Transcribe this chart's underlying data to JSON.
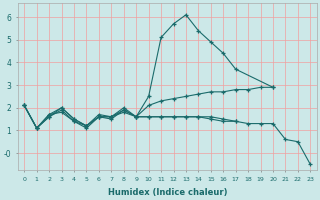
{
  "xlabel": "Humidex (Indice chaleur)",
  "background_color": "#cce8e8",
  "line_color": "#1a6b6b",
  "grid_color": "#f0a0a0",
  "xlim": [
    -0.5,
    23.5
  ],
  "ylim": [
    -0.75,
    6.6
  ],
  "xticks": [
    0,
    1,
    2,
    3,
    4,
    5,
    6,
    7,
    8,
    9,
    10,
    11,
    12,
    13,
    14,
    15,
    16,
    17,
    18,
    19,
    20,
    21,
    22,
    23
  ],
  "yticks": [
    0,
    1,
    2,
    3,
    4,
    5,
    6
  ],
  "ytick_labels": [
    "-0",
    "1",
    "2",
    "3",
    "4",
    "5",
    "6"
  ],
  "lines": [
    {
      "x": [
        0,
        1,
        2,
        3,
        4,
        5,
        6,
        7,
        8,
        9,
        10,
        11,
        12,
        13,
        14,
        15,
        16,
        17,
        20
      ],
      "y": [
        2.1,
        1.1,
        1.6,
        2.0,
        1.5,
        1.2,
        1.6,
        1.5,
        1.9,
        1.6,
        2.5,
        5.1,
        5.7,
        6.1,
        5.4,
        4.9,
        4.4,
        3.7,
        2.9
      ]
    },
    {
      "x": [
        0,
        1,
        2,
        3,
        4,
        5,
        6,
        7,
        8,
        9,
        10,
        11,
        12,
        13,
        14,
        15,
        16,
        17,
        18,
        19,
        20
      ],
      "y": [
        2.1,
        1.1,
        1.6,
        1.9,
        1.4,
        1.1,
        1.6,
        1.6,
        2.0,
        1.6,
        2.1,
        2.3,
        2.4,
        2.5,
        2.6,
        2.7,
        2.7,
        2.8,
        2.8,
        2.9,
        2.9
      ]
    },
    {
      "x": [
        0,
        1,
        2,
        3,
        4,
        5,
        6,
        7,
        8,
        9,
        10,
        11,
        12,
        13,
        14,
        15,
        16,
        17,
        18,
        19,
        20,
        21,
        22,
        23
      ],
      "y": [
        2.1,
        1.1,
        1.7,
        1.8,
        1.4,
        1.2,
        1.6,
        1.6,
        1.8,
        1.6,
        1.6,
        1.6,
        1.6,
        1.6,
        1.6,
        1.5,
        1.4,
        1.4,
        1.3,
        1.3,
        1.3,
        0.6,
        0.5,
        -0.5
      ]
    },
    {
      "x": [
        0,
        1,
        2,
        3,
        4,
        5,
        6,
        7,
        8,
        9,
        10,
        11,
        12,
        13,
        14,
        15,
        16,
        17
      ],
      "y": [
        2.1,
        1.1,
        1.7,
        2.0,
        1.5,
        1.2,
        1.7,
        1.6,
        1.9,
        1.6,
        1.6,
        1.6,
        1.6,
        1.6,
        1.6,
        1.6,
        1.5,
        1.4
      ]
    }
  ]
}
